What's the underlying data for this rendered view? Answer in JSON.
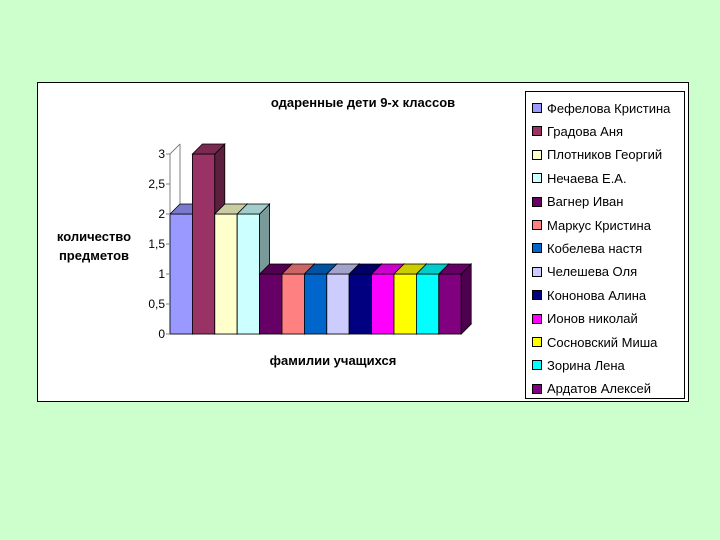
{
  "chart_data": {
    "type": "bar",
    "title": "одаренные дети 9-х классов",
    "xlabel": "фамилии учащихся",
    "ylabel": "количество предметов",
    "ylabel_lines": [
      "количество",
      "предметов"
    ],
    "ylim": [
      0,
      3
    ],
    "yticks": [
      "0",
      "0,5",
      "1",
      "1,5",
      "2",
      "2,5",
      "3"
    ],
    "grid": false,
    "legend_position": "right",
    "series": [
      {
        "name": "Фефелова Кристина",
        "values": [
          2
        ],
        "color": "#9999ff"
      },
      {
        "name": "Градова Аня",
        "values": [
          3
        ],
        "color": "#993366"
      },
      {
        "name": "Плотников Георгий",
        "values": [
          2
        ],
        "color": "#ffffcc"
      },
      {
        "name": "Нечаева Е.А.",
        "values": [
          2
        ],
        "color": "#ccffff"
      },
      {
        "name": "Вагнер Иван",
        "values": [
          1
        ],
        "color": "#660066"
      },
      {
        "name": "Маркус Кристина",
        "values": [
          1
        ],
        "color": "#ff8080"
      },
      {
        "name": "Кобелева настя",
        "values": [
          1
        ],
        "color": "#0066cc"
      },
      {
        "name": "Челешева Оля",
        "values": [
          1
        ],
        "color": "#ccccff"
      },
      {
        "name": "Кононова Алина",
        "values": [
          1
        ],
        "color": "#000080"
      },
      {
        "name": "Ионов николай",
        "values": [
          1
        ],
        "color": "#ff00ff"
      },
      {
        "name": "Сосновский Миша",
        "values": [
          1
        ],
        "color": "#ffff00"
      },
      {
        "name": "Зорина Лена",
        "values": [
          1
        ],
        "color": "#00ffff"
      },
      {
        "name": "Ардатов Алексей",
        "values": [
          1
        ],
        "color": "#800080"
      }
    ]
  }
}
